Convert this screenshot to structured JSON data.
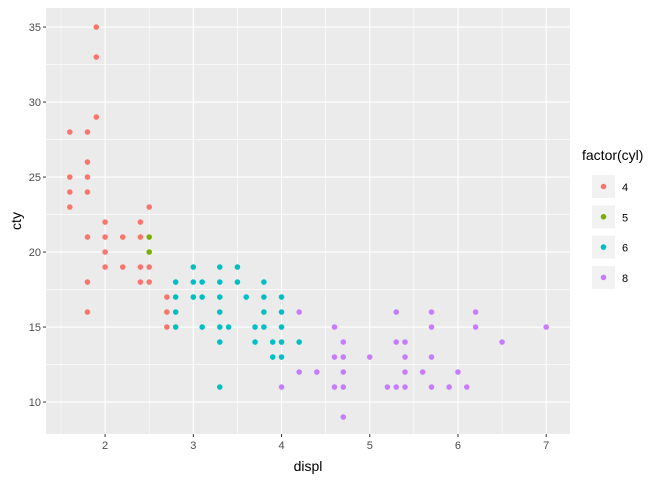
{
  "chart_data": {
    "type": "scatter",
    "title": "",
    "xlabel": "displ",
    "ylabel": "cty",
    "xlim": [
      1.33,
      7.27
    ],
    "ylim": [
      7.87,
      36.27
    ],
    "x_ticks": [
      2,
      3,
      4,
      5,
      6,
      7
    ],
    "y_ticks": [
      10,
      15,
      20,
      25,
      30,
      35
    ],
    "grid": true,
    "legend": {
      "title": "factor(cyl)",
      "placement": "right"
    },
    "series": [
      {
        "name": "4",
        "color": "#F8766D",
        "points": [
          [
            1.9,
            35
          ],
          [
            1.9,
            33
          ],
          [
            1.9,
            29
          ],
          [
            1.6,
            28
          ],
          [
            1.8,
            28
          ],
          [
            1.8,
            26
          ],
          [
            1.6,
            25
          ],
          [
            1.8,
            25
          ],
          [
            1.6,
            24
          ],
          [
            1.8,
            24
          ],
          [
            1.6,
            23
          ],
          [
            2.5,
            23
          ],
          [
            2.0,
            22
          ],
          [
            2.4,
            22
          ],
          [
            1.8,
            21
          ],
          [
            2.0,
            21
          ],
          [
            2.2,
            21
          ],
          [
            2.4,
            21
          ],
          [
            2.0,
            20
          ],
          [
            2.0,
            19
          ],
          [
            2.2,
            19
          ],
          [
            2.4,
            19
          ],
          [
            2.5,
            19
          ],
          [
            1.8,
            18
          ],
          [
            2.4,
            18
          ],
          [
            2.5,
            18
          ],
          [
            2.7,
            17
          ],
          [
            1.8,
            16
          ],
          [
            2.7,
            16
          ],
          [
            2.7,
            15
          ]
        ]
      },
      {
        "name": "5",
        "color": "#7CAE00",
        "points": [
          [
            2.5,
            21
          ],
          [
            2.5,
            20
          ]
        ]
      },
      {
        "name": "6",
        "color": "#00BFC4",
        "points": [
          [
            3.0,
            19
          ],
          [
            3.3,
            19
          ],
          [
            3.5,
            19
          ],
          [
            2.8,
            18
          ],
          [
            3.0,
            18
          ],
          [
            3.1,
            18
          ],
          [
            3.3,
            18
          ],
          [
            3.5,
            18
          ],
          [
            3.8,
            18
          ],
          [
            2.8,
            17
          ],
          [
            3.0,
            17
          ],
          [
            3.1,
            17
          ],
          [
            3.3,
            17
          ],
          [
            3.6,
            17
          ],
          [
            3.8,
            17
          ],
          [
            4.0,
            17
          ],
          [
            2.8,
            16
          ],
          [
            3.3,
            16
          ],
          [
            3.8,
            16
          ],
          [
            4.0,
            16
          ],
          [
            2.8,
            15
          ],
          [
            3.1,
            15
          ],
          [
            3.3,
            15
          ],
          [
            3.4,
            15
          ],
          [
            3.7,
            15
          ],
          [
            3.8,
            15
          ],
          [
            4.0,
            15
          ],
          [
            3.3,
            14
          ],
          [
            3.7,
            14
          ],
          [
            3.9,
            14
          ],
          [
            4.0,
            14
          ],
          [
            4.2,
            14
          ],
          [
            3.9,
            13
          ],
          [
            4.0,
            13
          ],
          [
            3.3,
            11
          ]
        ]
      },
      {
        "name": "8",
        "color": "#C77CFF",
        "points": [
          [
            4.2,
            16
          ],
          [
            5.3,
            16
          ],
          [
            5.7,
            16
          ],
          [
            6.2,
            16
          ],
          [
            4.6,
            15
          ],
          [
            5.7,
            15
          ],
          [
            6.2,
            15
          ],
          [
            7.0,
            15
          ],
          [
            4.7,
            14
          ],
          [
            5.3,
            14
          ],
          [
            5.4,
            14
          ],
          [
            6.5,
            14
          ],
          [
            4.6,
            13
          ],
          [
            4.7,
            13
          ],
          [
            5.0,
            13
          ],
          [
            5.4,
            13
          ],
          [
            5.7,
            13
          ],
          [
            4.2,
            12
          ],
          [
            4.4,
            12
          ],
          [
            4.7,
            12
          ],
          [
            5.4,
            12
          ],
          [
            5.6,
            12
          ],
          [
            6.0,
            12
          ],
          [
            4.0,
            11
          ],
          [
            4.6,
            11
          ],
          [
            4.7,
            11
          ],
          [
            5.2,
            11
          ],
          [
            5.3,
            11
          ],
          [
            5.4,
            11
          ],
          [
            5.7,
            11
          ],
          [
            5.9,
            11
          ],
          [
            6.1,
            11
          ],
          [
            4.7,
            9
          ]
        ]
      }
    ]
  }
}
